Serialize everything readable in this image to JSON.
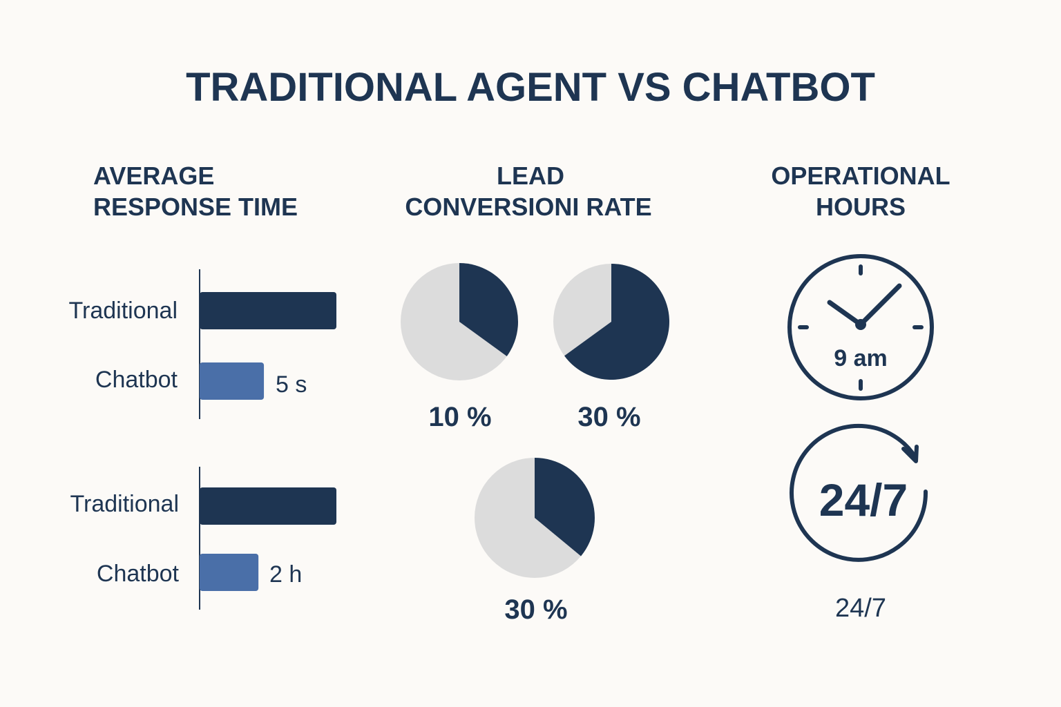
{
  "title": "TRADITIONAL AGENT VS CHATBOT",
  "colors": {
    "background": "#fcfaf7",
    "navy": "#1e3552",
    "blue": "#4a6fa8",
    "gray": "#dcdcdc"
  },
  "sections": {
    "response": {
      "line1": "AVERAGE",
      "line2": "RESPONSE TIME"
    },
    "conversion": {
      "line1": "LEAD",
      "line2": "CONVERSIONI RATE"
    },
    "hours": {
      "line1": "OPERATIONAL",
      "line2": "HOURS"
    }
  },
  "chart_data": [
    {
      "type": "bar",
      "title": "AVERAGE RESPONSE TIME (group 1)",
      "orientation": "horizontal",
      "categories": [
        "Traditional",
        "Chatbot"
      ],
      "relative_values": [
        1.0,
        0.47
      ],
      "value_labels": [
        "",
        "5 s"
      ]
    },
    {
      "type": "bar",
      "title": "AVERAGE RESPONSE TIME (group 2)",
      "orientation": "horizontal",
      "categories": [
        "Traditional",
        "Chatbot"
      ],
      "relative_values": [
        1.0,
        0.43
      ],
      "value_labels": [
        "",
        "2 h"
      ]
    },
    {
      "type": "pie",
      "title": "LEAD CONVERSIONI RATE (1)",
      "highlighted_share": 0.35,
      "label": "10 %"
    },
    {
      "type": "pie",
      "title": "LEAD CONVERSIONI RATE (2)",
      "highlighted_share": 0.65,
      "label": "30 %"
    },
    {
      "type": "pie",
      "title": "LEAD CONVERSIONI RATE (3)",
      "highlighted_share": 0.36,
      "label": "30 %"
    }
  ],
  "hours": {
    "clock_label": "9 am",
    "badge_label": "24/7",
    "caption": "24/7"
  }
}
